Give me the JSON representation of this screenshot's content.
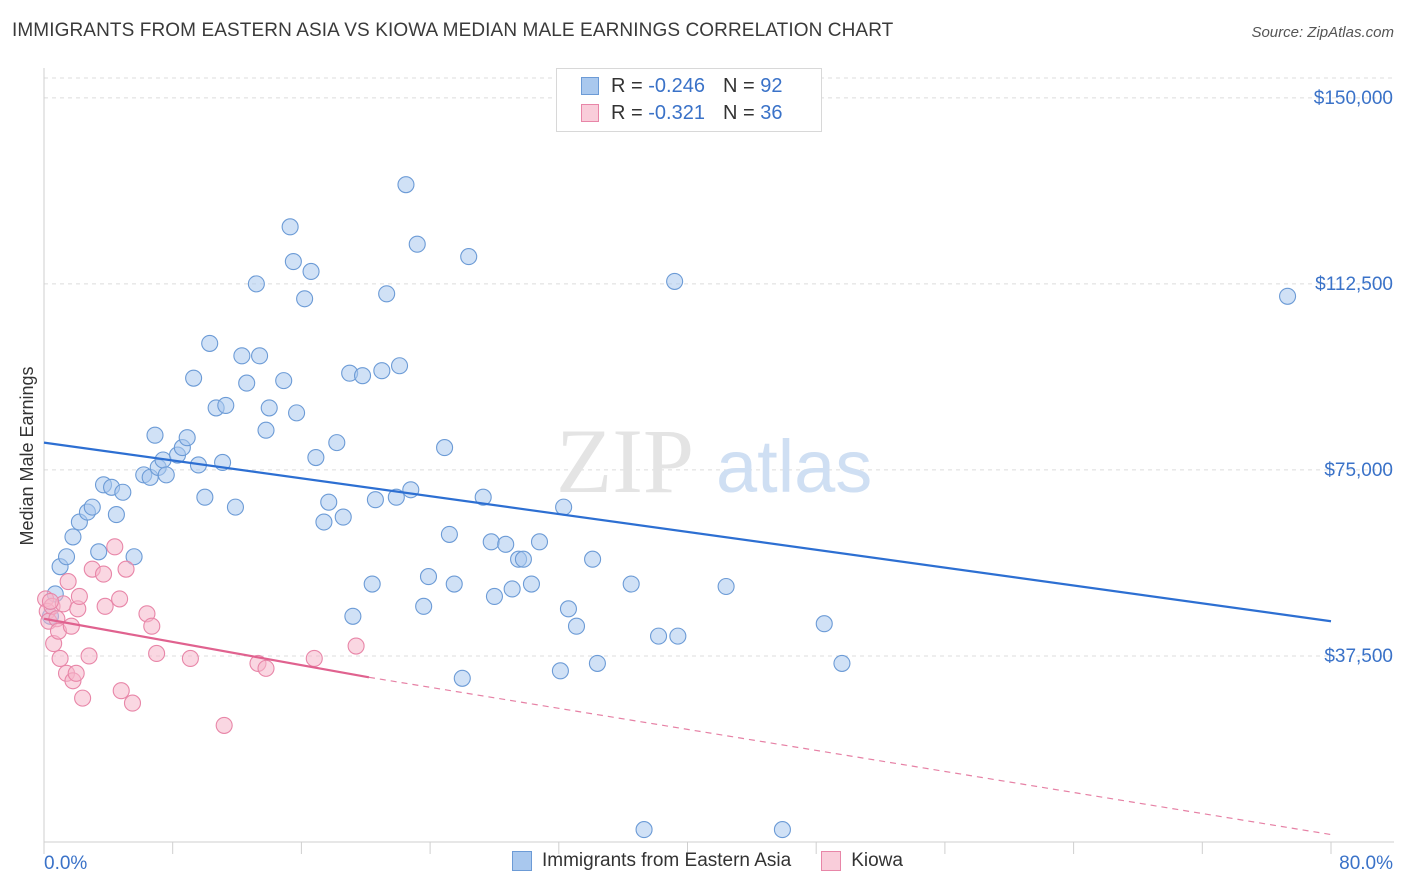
{
  "title": "IMMIGRANTS FROM EASTERN ASIA VS KIOWA MEDIAN MALE EARNINGS CORRELATION CHART",
  "source": "Source: ZipAtlas.com",
  "watermark": {
    "part1": "ZIP",
    "part2": "atlas"
  },
  "legend_top": {
    "rows": [
      {
        "r_label": "R =",
        "r_value": "-0.246",
        "n_label": "N =",
        "n_value": "92"
      },
      {
        "r_label": "R =",
        "r_value": "-0.321",
        "n_label": "N =",
        "n_value": "36"
      }
    ]
  },
  "legend_bottom": {
    "items": [
      "Immigrants from Eastern Asia",
      "Kiowa"
    ]
  },
  "colors": {
    "blue_fill": "#a9c8ee",
    "blue_stroke": "#6c9bd6",
    "blue_line": "#2d6fd2",
    "pink_fill": "#f5b6cb",
    "pink_stroke": "#e886a8",
    "pink_line": "#e0628f",
    "tick_label": "#3a72c8",
    "grid": "#dcdcdc"
  },
  "chart_data": {
    "type": "scatter",
    "title": "IMMIGRANTS FROM EASTERN ASIA VS KIOWA MEDIAN MALE EARNINGS CORRELATION CHART",
    "xlabel": "",
    "ylabel": "Median Male Earnings",
    "xlim": [
      0,
      80
    ],
    "ylim": [
      0,
      154000
    ],
    "x_tick_labels": [
      "0.0%",
      "80.0%"
    ],
    "y_ticks": [
      37500,
      75000,
      112500,
      150000
    ],
    "y_tick_labels": [
      "$37,500",
      "$75,000",
      "$112,500",
      "$150,000"
    ],
    "grid": "horizontal dashed",
    "legend_position": "top-center",
    "series": [
      {
        "name": "Immigrants from Eastern Asia",
        "color": "blue",
        "points": [
          [
            0.7,
            50000
          ],
          [
            1.0,
            55500
          ],
          [
            1.4,
            57500
          ],
          [
            1.8,
            61500
          ],
          [
            2.2,
            64500
          ],
          [
            2.7,
            66500
          ],
          [
            3.0,
            67500
          ],
          [
            3.4,
            58500
          ],
          [
            3.7,
            72000
          ],
          [
            4.2,
            71500
          ],
          [
            4.5,
            66000
          ],
          [
            4.9,
            70500
          ],
          [
            5.6,
            57500
          ],
          [
            6.2,
            74000
          ],
          [
            6.6,
            73500
          ],
          [
            6.9,
            82000
          ],
          [
            7.1,
            75500
          ],
          [
            7.4,
            77000
          ],
          [
            7.6,
            74000
          ],
          [
            8.3,
            78000
          ],
          [
            8.6,
            79500
          ],
          [
            8.9,
            81500
          ],
          [
            9.6,
            76000
          ],
          [
            9.3,
            93500
          ],
          [
            10.0,
            69500
          ],
          [
            10.3,
            100500
          ],
          [
            10.7,
            87500
          ],
          [
            11.1,
            76500
          ],
          [
            11.3,
            88000
          ],
          [
            11.9,
            67500
          ],
          [
            12.3,
            98000
          ],
          [
            12.6,
            92500
          ],
          [
            13.2,
            112500
          ],
          [
            13.4,
            98000
          ],
          [
            13.8,
            83000
          ],
          [
            14.0,
            87500
          ],
          [
            14.9,
            93000
          ],
          [
            15.3,
            124000
          ],
          [
            15.5,
            117000
          ],
          [
            15.7,
            86500
          ],
          [
            16.2,
            109500
          ],
          [
            16.6,
            115000
          ],
          [
            16.9,
            77500
          ],
          [
            17.4,
            64500
          ],
          [
            17.7,
            68500
          ],
          [
            18.2,
            80500
          ],
          [
            18.6,
            65500
          ],
          [
            19.0,
            94500
          ],
          [
            19.2,
            45500
          ],
          [
            19.8,
            94000
          ],
          [
            20.4,
            52000
          ],
          [
            20.6,
            69000
          ],
          [
            21.0,
            95000
          ],
          [
            21.3,
            110500
          ],
          [
            21.9,
            69500
          ],
          [
            22.1,
            96000
          ],
          [
            22.5,
            132500
          ],
          [
            22.8,
            71000
          ],
          [
            23.2,
            120500
          ],
          [
            23.6,
            47500
          ],
          [
            23.9,
            53500
          ],
          [
            24.9,
            79500
          ],
          [
            25.2,
            62000
          ],
          [
            25.5,
            52000
          ],
          [
            26.0,
            33000
          ],
          [
            26.4,
            118000
          ],
          [
            27.3,
            69500
          ],
          [
            27.8,
            60500
          ],
          [
            28.0,
            49500
          ],
          [
            28.7,
            60000
          ],
          [
            29.1,
            51000
          ],
          [
            29.5,
            57000
          ],
          [
            29.8,
            57000
          ],
          [
            30.3,
            52000
          ],
          [
            30.8,
            60500
          ],
          [
            32.1,
            34500
          ],
          [
            32.3,
            67500
          ],
          [
            32.6,
            47000
          ],
          [
            33.1,
            43500
          ],
          [
            34.1,
            57000
          ],
          [
            34.4,
            36000
          ],
          [
            36.5,
            52000
          ],
          [
            37.3,
            2500
          ],
          [
            38.2,
            41500
          ],
          [
            39.2,
            113000
          ],
          [
            39.4,
            41500
          ],
          [
            42.4,
            51500
          ],
          [
            45.9,
            2500
          ],
          [
            48.5,
            44000
          ],
          [
            49.6,
            36000
          ],
          [
            77.3,
            110000
          ],
          [
            0.4,
            45500
          ]
        ],
        "trend": {
          "x": [
            0,
            80
          ],
          "y": [
            80500,
            44500
          ]
        }
      },
      {
        "name": "Kiowa",
        "color": "pink",
        "points": [
          [
            0.1,
            49000
          ],
          [
            0.2,
            46500
          ],
          [
            0.3,
            44500
          ],
          [
            0.5,
            47500
          ],
          [
            0.6,
            40000
          ],
          [
            0.8,
            45000
          ],
          [
            0.9,
            42500
          ],
          [
            1.0,
            37000
          ],
          [
            1.2,
            48000
          ],
          [
            1.4,
            34000
          ],
          [
            1.5,
            52500
          ],
          [
            1.7,
            43500
          ],
          [
            1.8,
            32500
          ],
          [
            2.0,
            34000
          ],
          [
            2.1,
            47000
          ],
          [
            2.2,
            49500
          ],
          [
            2.4,
            29000
          ],
          [
            2.8,
            37500
          ],
          [
            3.0,
            55000
          ],
          [
            3.7,
            54000
          ],
          [
            3.8,
            47500
          ],
          [
            4.4,
            59500
          ],
          [
            4.7,
            49000
          ],
          [
            4.8,
            30500
          ],
          [
            5.1,
            55000
          ],
          [
            5.5,
            28000
          ],
          [
            6.4,
            46000
          ],
          [
            6.7,
            43500
          ],
          [
            7.0,
            38000
          ],
          [
            9.1,
            37000
          ],
          [
            11.2,
            23500
          ],
          [
            13.3,
            36000
          ],
          [
            13.8,
            35000
          ],
          [
            16.8,
            37000
          ],
          [
            19.4,
            39500
          ],
          [
            0.4,
            48500
          ]
        ],
        "trend": {
          "x": [
            0,
            20.2
          ],
          "y": [
            45000,
            33200
          ]
        },
        "trend_extension": {
          "x": [
            20.2,
            80
          ],
          "y": [
            33200,
            1500
          ]
        }
      }
    ]
  }
}
